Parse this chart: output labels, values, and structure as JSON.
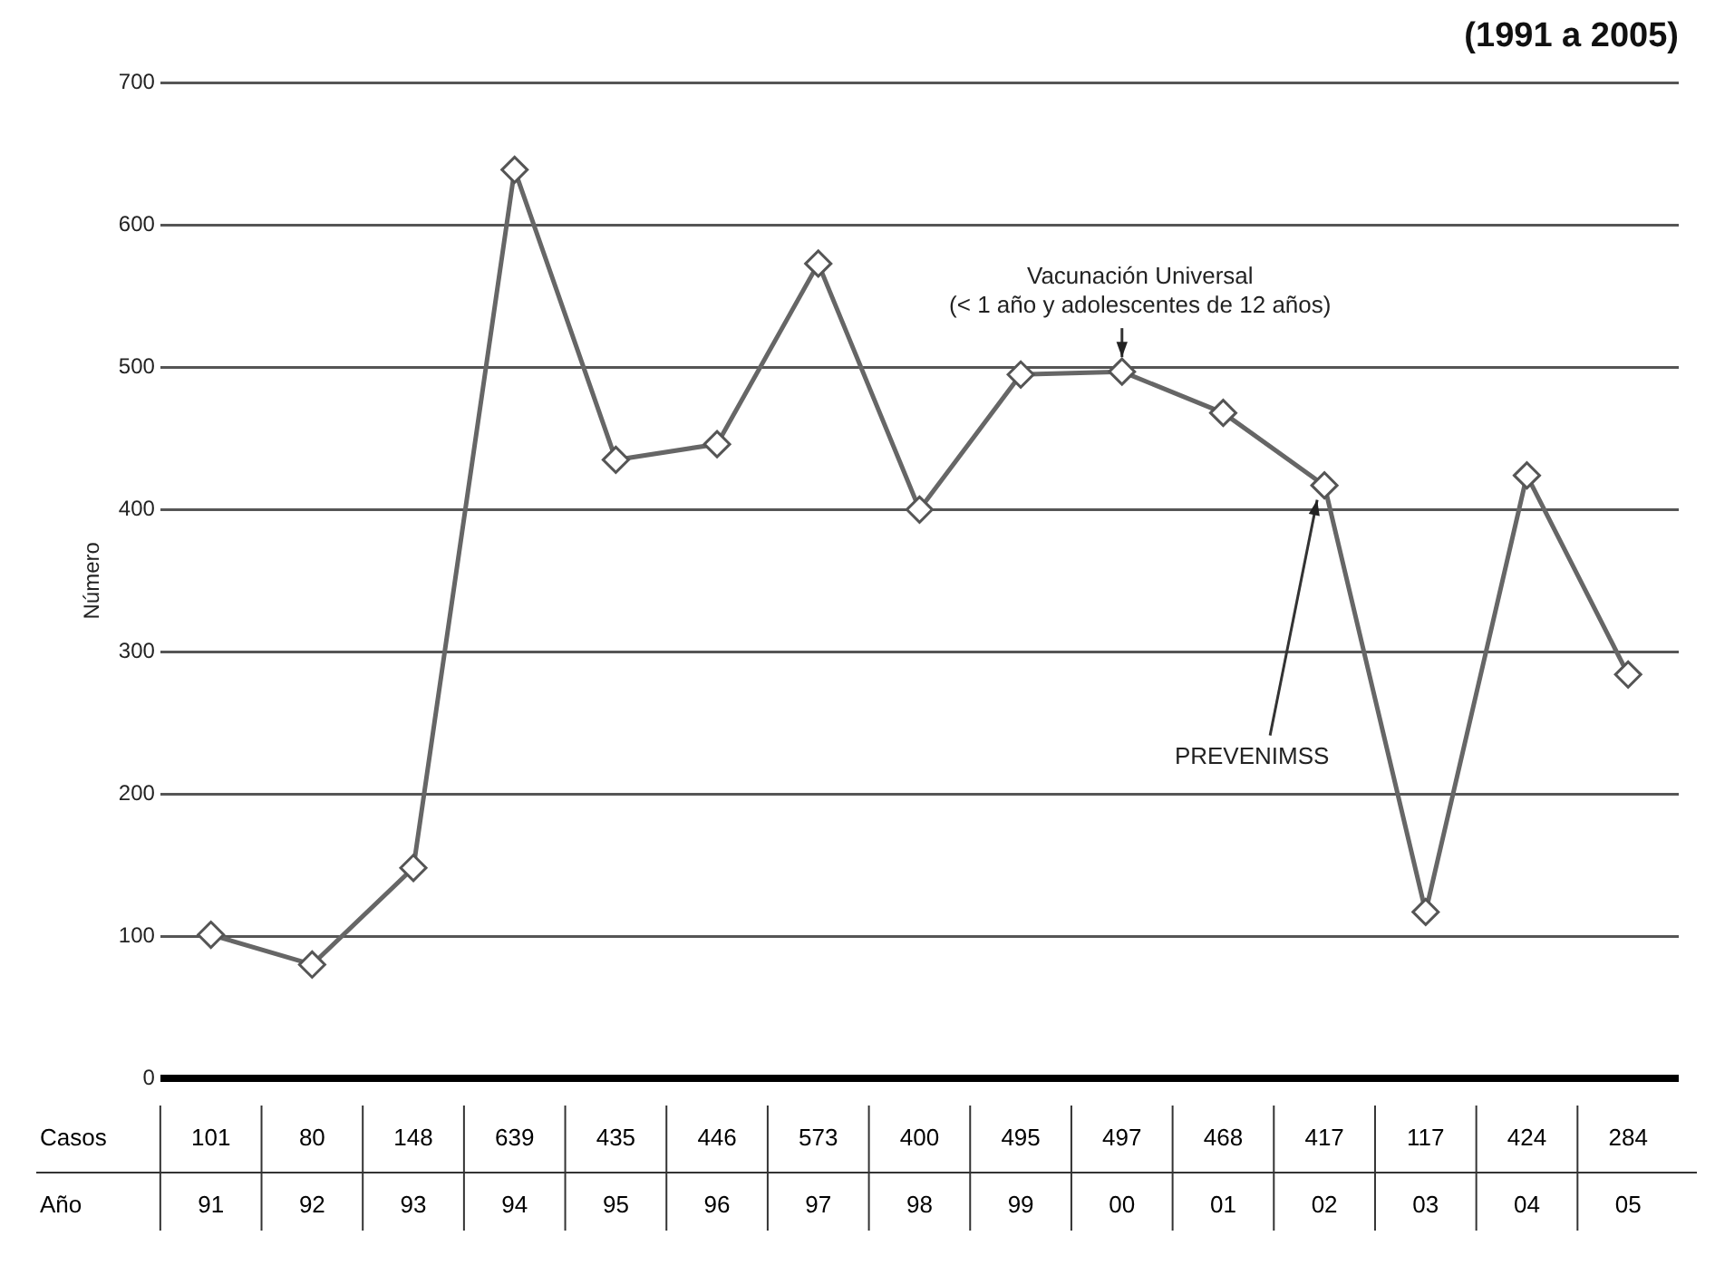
{
  "chart_data": {
    "type": "line",
    "title": "(1991 a 2005)",
    "ylabel": "Número",
    "xlabel": "Año",
    "categories": [
      "91",
      "92",
      "93",
      "94",
      "95",
      "96",
      "97",
      "98",
      "99",
      "00",
      "01",
      "02",
      "03",
      "04",
      "05"
    ],
    "series": [
      {
        "name": "Casos",
        "color": "#666666",
        "values": [
          101,
          80,
          148,
          639,
          435,
          446,
          573,
          400,
          495,
          497,
          468,
          417,
          117,
          424,
          284
        ]
      }
    ],
    "ylim": [
      0,
      700
    ],
    "yticks": [
      0,
      100,
      200,
      300,
      400,
      500,
      600,
      700
    ],
    "grid": "y",
    "legend": false,
    "marker": "diamond",
    "line_style": "solid",
    "data_labels": true,
    "annotations": [
      {
        "text": "Vacunación Universal\n(< 1 año y adolescentes de 12 años)",
        "x": "00",
        "y": 497
      },
      {
        "text": "PREVENIMSS",
        "x": "02",
        "y": 417
      }
    ]
  }
}
